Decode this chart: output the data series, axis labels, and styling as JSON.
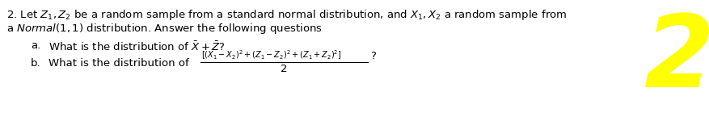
{
  "background_color": "#ffffff",
  "text_color": "#000000",
  "yellow_color": "#ffff00",
  "figsize": [
    8.78,
    1.45
  ],
  "dpi": 100,
  "line1": "2. Let $Z_1, Z_2$ be a random sample from a standard normal distribution, and $X_1, X_2$ a random sample from",
  "line2": "a $\\mathit{Normal}(1,1)$ distribution. Answer the following questions",
  "qa_label": "a.",
  "qa_text": "What is the distribution of $\\bar{X} + \\bar{Z}$?",
  "qb_label": "b.",
  "qb_text": "What is the distribution of",
  "frac_num": "$(X_1-X_2)^2+(Z_1-Z_2)^2+(Z_1+Z_2)^2$",
  "frac_den": "2",
  "bracket_open": "[",
  "bracket_close": "]",
  "question_mark": "?",
  "yellow_num": "2"
}
